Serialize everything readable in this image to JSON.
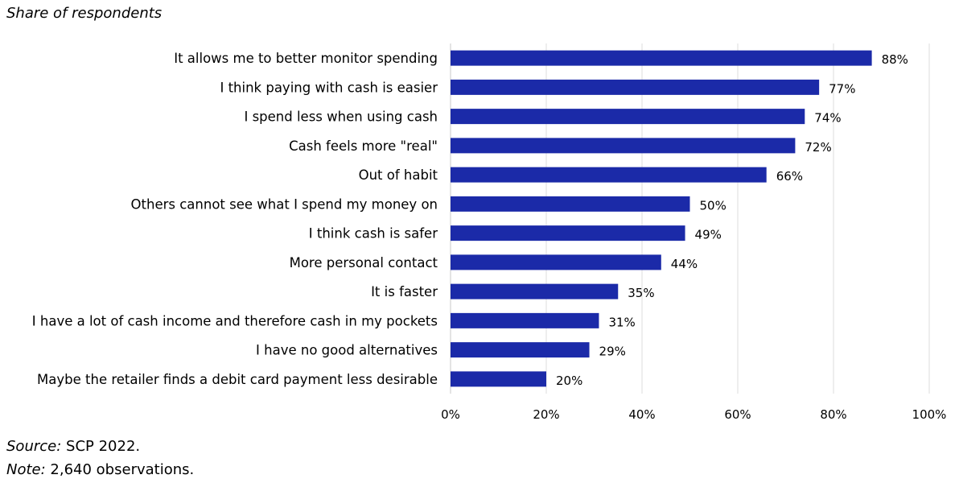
{
  "subtitle": "Share of respondents",
  "footer": {
    "source_label": "Source:",
    "source_text": "SCP 2022.",
    "note_label": "Note:",
    "note_text": "2,640 observations."
  },
  "colors": {
    "bar": "#1b2aa8",
    "grid": "#dcdcdc"
  },
  "chart_data": {
    "type": "bar",
    "orientation": "horizontal",
    "categories": [
      "It allows me to better monitor spending",
      "I think paying with cash is easier",
      "I spend less when using cash",
      "Cash feels more \"real\"",
      "Out of habit",
      "Others cannot see what I spend my money on",
      "I think cash is safer",
      "More personal contact",
      "It is faster",
      "I have a lot of cash income and therefore cash in my pockets",
      "I have no good alternatives",
      "Maybe the retailer finds a debit card payment less desirable"
    ],
    "values": [
      88,
      77,
      74,
      72,
      66,
      50,
      49,
      44,
      35,
      31,
      29,
      20
    ],
    "value_labels": [
      "88%",
      "77%",
      "74%",
      "72%",
      "66%",
      "50%",
      "49%",
      "44%",
      "35%",
      "31%",
      "29%",
      "20%"
    ],
    "xlim": [
      0,
      100
    ],
    "xticks": [
      0,
      20,
      40,
      60,
      80,
      100
    ],
    "xtick_labels": [
      "0%",
      "20%",
      "40%",
      "60%",
      "80%",
      "100%"
    ],
    "grid": true
  }
}
